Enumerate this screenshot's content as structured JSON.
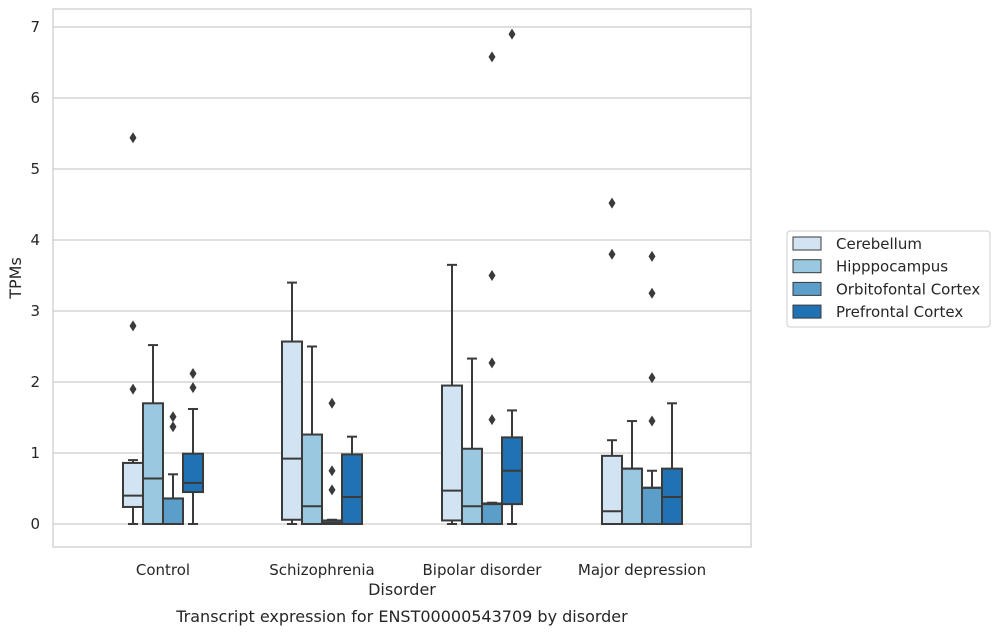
{
  "chart_data": {
    "type": "box",
    "caption": "Transcript expression for ENST00000543709 by disorder",
    "xlabel": "Disorder",
    "ylabel": "TPMs",
    "ylim": [
      -0.33,
      7.25
    ],
    "yticks": [
      0,
      1,
      2,
      3,
      4,
      5,
      6,
      7
    ],
    "grid": true,
    "legend_position": "right",
    "categories": [
      "Control",
      "Schizophrenia",
      "Bipolar disorder",
      "Major depression"
    ],
    "series": [
      {
        "name": "Cerebellum",
        "color": "#d2e3f3",
        "boxes": [
          {
            "whislo": 0.0,
            "q1": 0.24,
            "med": 0.4,
            "q3": 0.86,
            "whishi": 0.9,
            "fliers": [
              1.9,
              2.79,
              5.44
            ]
          },
          {
            "whislo": 0.0,
            "q1": 0.06,
            "med": 0.92,
            "q3": 2.57,
            "whishi": 3.4,
            "fliers": []
          },
          {
            "whislo": 0.0,
            "q1": 0.05,
            "med": 0.47,
            "q3": 1.95,
            "whishi": 3.65,
            "fliers": []
          },
          {
            "whislo": 0.0,
            "q1": 0.0,
            "med": 0.18,
            "q3": 0.96,
            "whishi": 1.18,
            "fliers": [
              3.8,
              4.52
            ]
          }
        ]
      },
      {
        "name": "Hipppocampus",
        "color": "#9ac8e0",
        "boxes": [
          {
            "whislo": 0.0,
            "q1": 0.0,
            "med": 0.64,
            "q3": 1.7,
            "whishi": 2.52,
            "fliers": []
          },
          {
            "whislo": 0.0,
            "q1": 0.0,
            "med": 0.25,
            "q3": 1.26,
            "whishi": 2.5,
            "fliers": []
          },
          {
            "whislo": 0.0,
            "q1": 0.0,
            "med": 0.25,
            "q3": 1.06,
            "whishi": 2.33,
            "fliers": []
          },
          {
            "whislo": 0.0,
            "q1": 0.0,
            "med": 0.78,
            "q3": 0.78,
            "whishi": 1.45,
            "fliers": []
          }
        ]
      },
      {
        "name": "Orbitofontal Cortex",
        "color": "#5a9ec9",
        "boxes": [
          {
            "whislo": 0.0,
            "q1": 0.0,
            "med": 0.36,
            "q3": 0.36,
            "whishi": 0.7,
            "fliers": [
              1.37,
              1.51
            ]
          },
          {
            "whislo": 0.0,
            "q1": 0.0,
            "med": 0.02,
            "q3": 0.05,
            "whishi": 0.06,
            "fliers": [
              0.48,
              0.75,
              1.7
            ]
          },
          {
            "whislo": 0.0,
            "q1": 0.0,
            "med": 0.28,
            "q3": 0.29,
            "whishi": 0.3,
            "fliers": [
              1.47,
              2.27,
              3.5,
              6.58
            ]
          },
          {
            "whislo": 0.0,
            "q1": 0.0,
            "med": 0.51,
            "q3": 0.51,
            "whishi": 0.75,
            "fliers": [
              1.45,
              2.06,
              3.25,
              3.77
            ]
          }
        ]
      },
      {
        "name": "Prefrontal Cortex",
        "color": "#2171b5",
        "boxes": [
          {
            "whislo": 0.0,
            "q1": 0.45,
            "med": 0.58,
            "q3": 0.99,
            "whishi": 1.62,
            "fliers": [
              1.92,
              2.12
            ]
          },
          {
            "whislo": 0.0,
            "q1": 0.0,
            "med": 0.38,
            "q3": 0.98,
            "whishi": 1.23,
            "fliers": []
          },
          {
            "whislo": 0.0,
            "q1": 0.28,
            "med": 0.75,
            "q3": 1.22,
            "whishi": 1.6,
            "fliers": [
              6.9
            ]
          },
          {
            "whislo": 0.0,
            "q1": 0.0,
            "med": 0.38,
            "q3": 0.78,
            "whishi": 1.7,
            "fliers": []
          }
        ]
      }
    ]
  }
}
